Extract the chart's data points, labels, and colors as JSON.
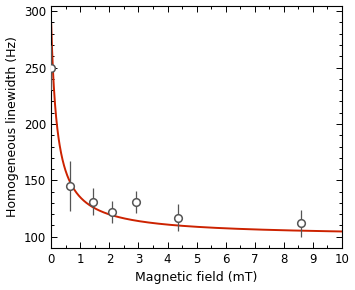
{
  "title": "",
  "xlabel": "Magnetic field (mT)",
  "ylabel": "Homogeneous linewidth (Hz)",
  "xlim": [
    0,
    10
  ],
  "ylim": [
    90,
    305
  ],
  "yticks": [
    100,
    150,
    200,
    250,
    300
  ],
  "xticks": [
    0,
    1,
    2,
    3,
    4,
    5,
    6,
    7,
    8,
    9,
    10
  ],
  "data_x": [
    0.0,
    0.65,
    1.45,
    2.1,
    2.9,
    4.35,
    8.6
  ],
  "data_y": [
    250,
    145,
    131,
    122,
    131,
    117,
    112
  ],
  "data_yerr": [
    20,
    22,
    12,
    10,
    10,
    12,
    12
  ],
  "curve_color": "#cc2200",
  "marker_color": "#555555",
  "marker_facecolor": "white",
  "marker_size": 5.5,
  "marker_linewidth": 1.1,
  "curve_linewidth": 1.4,
  "fit_A": 41.52,
  "fit_n": 0.94,
  "fit_x0": 0.2,
  "fit_C": 100
}
